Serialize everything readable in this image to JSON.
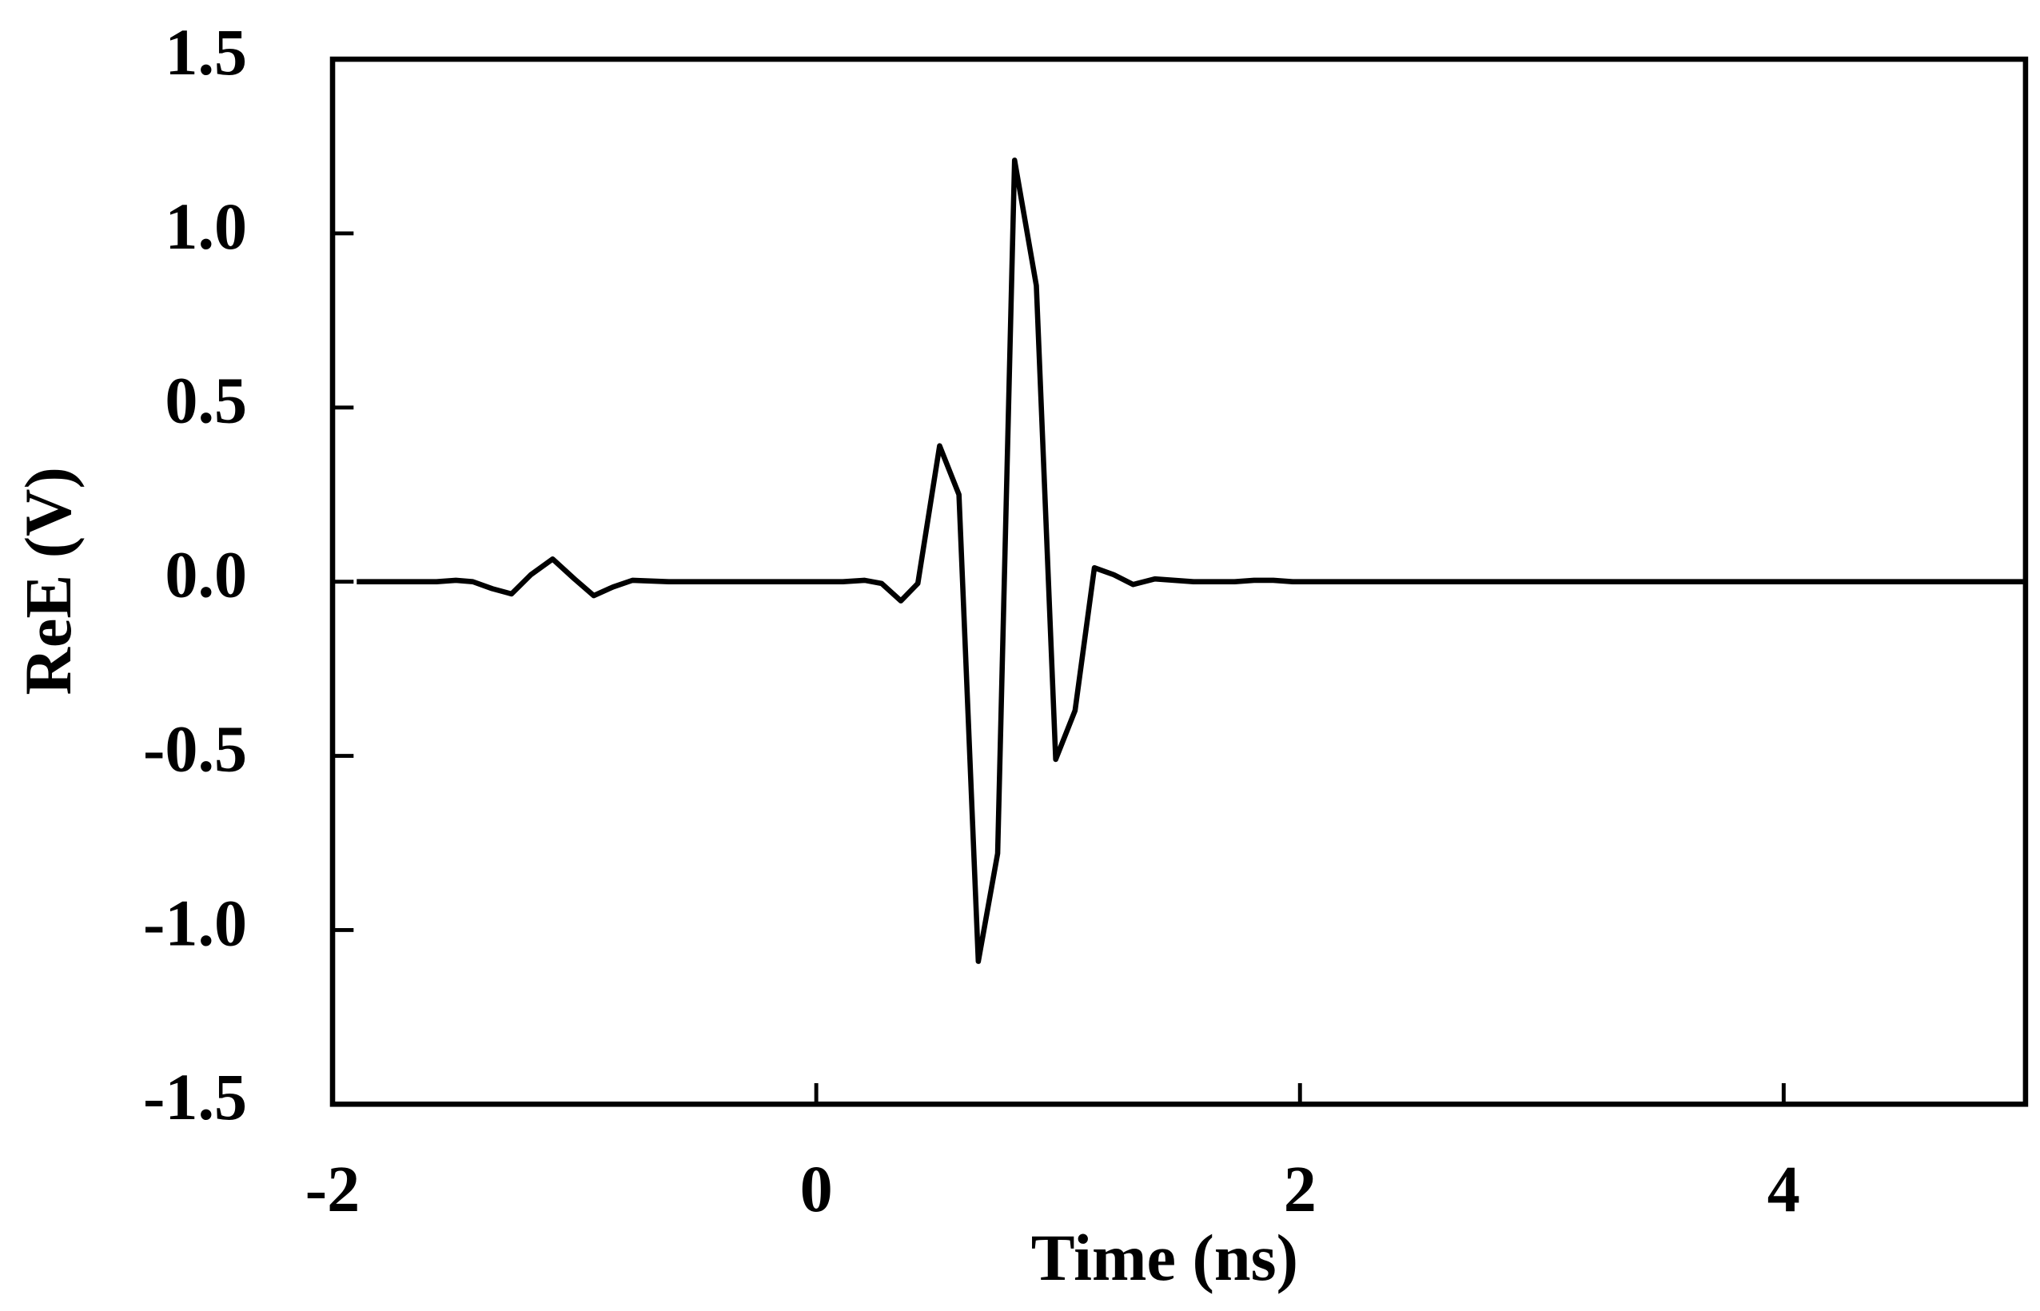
{
  "chart_data": {
    "type": "line",
    "xlabel": "Time (ns)",
    "ylabel": "ReE (V)",
    "xlim": [
      -2,
      5
    ],
    "ylim": [
      -1.5,
      1.5
    ],
    "xticks": [
      -2,
      0,
      2,
      4
    ],
    "yticks": [
      1.5,
      {
        "value": 1,
        "label": "1.0"
      },
      0.5,
      {
        "value": 0,
        "label": "0.0"
      },
      -0.5,
      {
        "value": -1,
        "label": "-1.0"
      },
      -1.5
    ],
    "series": [
      {
        "color": "#000000",
        "x": [
          -1.9,
          -1.57,
          -1.49,
          -1.42,
          -1.34,
          -1.26,
          -1.18,
          -1.09,
          -1.0,
          -0.92,
          -0.84,
          -0.76,
          -0.61,
          0.11,
          0.2,
          0.27,
          0.35,
          0.42,
          0.51,
          0.59,
          0.67,
          0.75,
          0.82,
          0.91,
          0.99,
          1.07,
          1.15,
          1.23,
          1.31,
          1.4,
          1.48,
          1.56,
          1.73,
          1.81,
          1.89,
          1.97,
          4.99
        ],
        "values": [
          0,
          0,
          0.004,
          0,
          -0.02,
          -0.035,
          0.02,
          0.065,
          0.008,
          -0.04,
          -0.015,
          0.004,
          0,
          0,
          0.004,
          -0.005,
          -0.055,
          -0.005,
          0.39,
          0.25,
          -1.09,
          -0.78,
          1.21,
          0.85,
          -0.51,
          -0.37,
          0.04,
          0.02,
          -0.008,
          0.008,
          0.004,
          0,
          0,
          0.004,
          0.004,
          0,
          0
        ]
      }
    ]
  }
}
